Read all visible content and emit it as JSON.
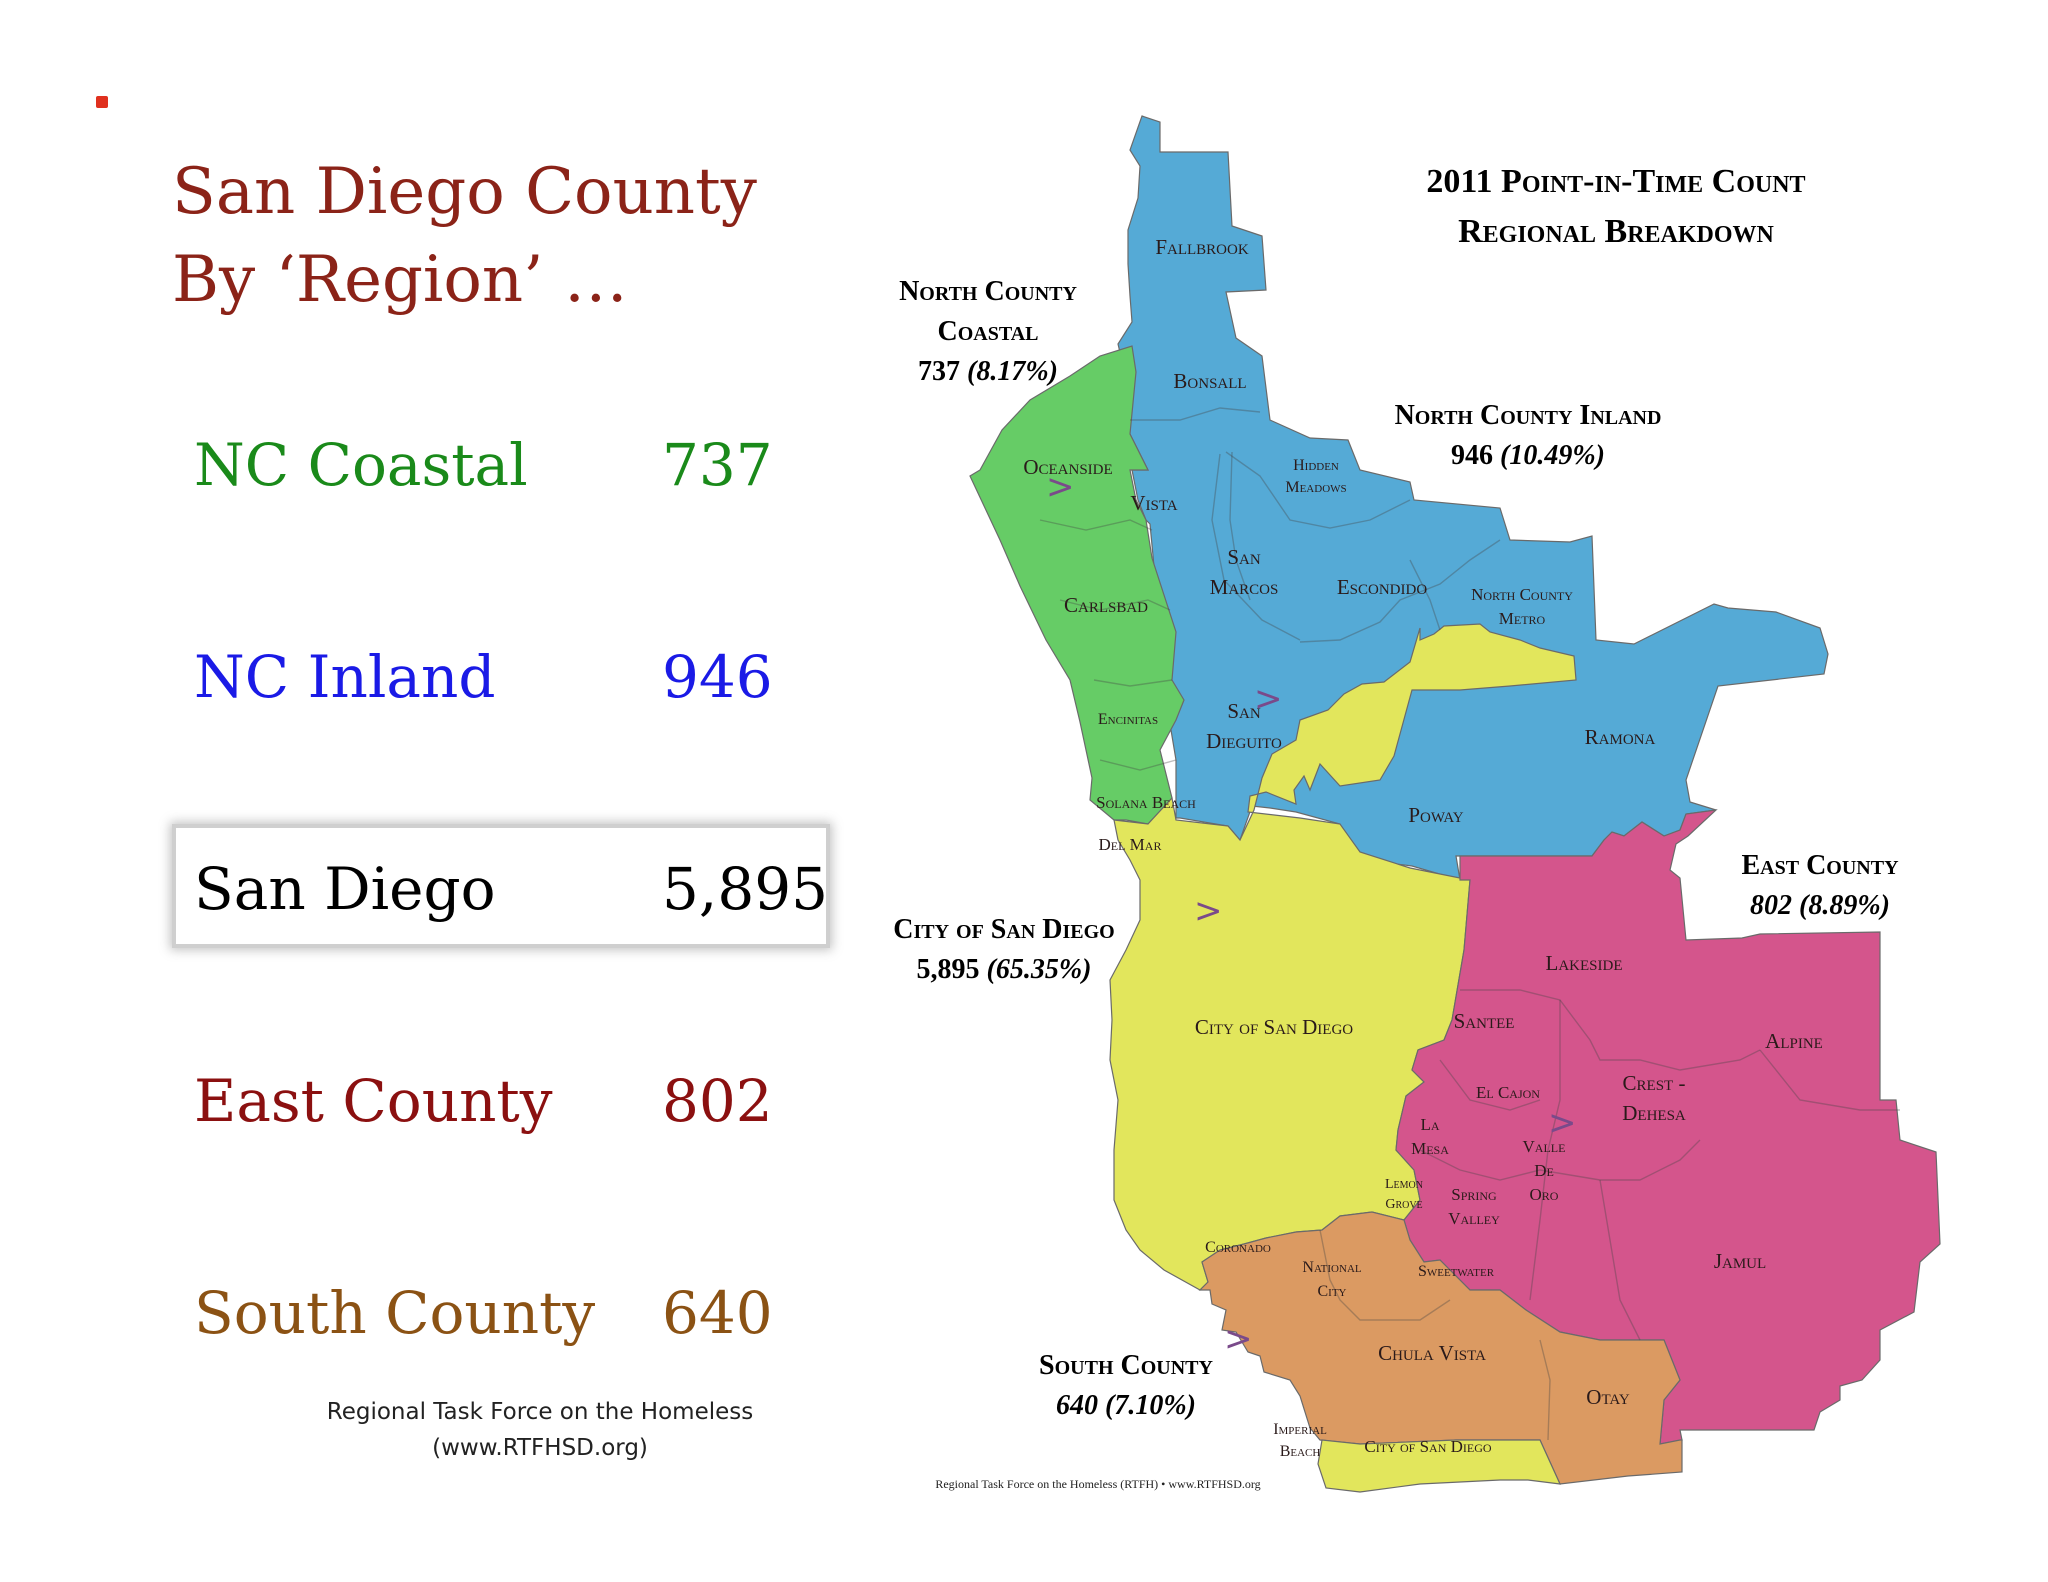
{
  "slide": {
    "title_line1": "San Diego County",
    "title_line2": "By ‘Region’ …",
    "rows": [
      {
        "name": "NC Coastal",
        "value": "737",
        "color": "#1a8a1a"
      },
      {
        "name": "NC Inland",
        "value": "946",
        "color": "#1a1ae6"
      },
      {
        "name": "San Diego",
        "value": "5,895",
        "color": "#000000"
      },
      {
        "name": "East County",
        "value": "802",
        "color": "#8b1010"
      },
      {
        "name": "South County",
        "value": "640",
        "color": "#8b5214"
      }
    ],
    "credit_line1": "Regional Task Force on the Homeless",
    "credit_line2": "(www.RTFHSD.org)"
  },
  "map": {
    "title_line1": "2011 Point-in-Time Count",
    "title_line2": "Regional Breakdown",
    "footer": "Regional Task Force on the Homeless (RTFH) • www.RTFHSD.org",
    "region_colors": {
      "nc_coastal": "#66cc66",
      "nc_inland": "#55aad6",
      "city_sd": "#e2e65c",
      "east": "#d4558c",
      "south": "#db9a62"
    },
    "regions": {
      "nc_coastal": {
        "name_line1": "North County",
        "name_line2": "Coastal",
        "stat": "737",
        "pct": "(8.17%)"
      },
      "nc_inland": {
        "name": "North County Inland",
        "stat": "946",
        "pct": "(10.49%)"
      },
      "city_sd": {
        "name": "City of San Diego",
        "stat": "5,895",
        "pct": "(65.35%)"
      },
      "east": {
        "name": "East County",
        "stat": "802",
        "pct": "(8.89%)"
      },
      "south": {
        "name": "South County",
        "stat": "640",
        "pct": "(7.10%)"
      }
    },
    "places": {
      "fallbrook": "Fallbrook",
      "bonsall": "Bonsall",
      "oceanside": "Oceanside",
      "vista": "Vista",
      "hidden_meadows_1": "Hidden",
      "hidden_meadows_2": "Meadows",
      "san_marcos_1": "San",
      "san_marcos_2": "Marcos",
      "escondido": "Escondido",
      "nc_metro_1": "North County",
      "nc_metro_2": "Metro",
      "carlsbad": "Carlsbad",
      "encinitas": "Encinitas",
      "san_dieguito_1": "San",
      "san_dieguito_2": "Dieguito",
      "ramona": "Ramona",
      "solana_beach": "Solana Beach",
      "del_mar": "Del Mar",
      "poway": "Poway",
      "lakeside": "Lakeside",
      "city_sd_label": "City of San Diego",
      "santee": "Santee",
      "alpine": "Alpine",
      "el_cajon": "El Cajon",
      "crest_1": "Crest -",
      "crest_2": "Dehesa",
      "la_mesa_1": "La",
      "la_mesa_2": "Mesa",
      "valle_1": "Valle",
      "valle_2": "De",
      "valle_3": "Oro",
      "lemon_1": "Lemon",
      "lemon_2": "Grove",
      "spring_1": "Spring",
      "spring_2": "Valley",
      "coronado": "Coronado",
      "national_1": "National",
      "national_2": "City",
      "sweetwater": "Sweetwater",
      "jamul": "Jamul",
      "chula_vista": "Chula Vista",
      "otay": "Otay",
      "imperial_1": "Imperial",
      "imperial_2": "Beach",
      "city_sd_south": "City of San Diego"
    },
    "arrow_glyph": ">"
  }
}
